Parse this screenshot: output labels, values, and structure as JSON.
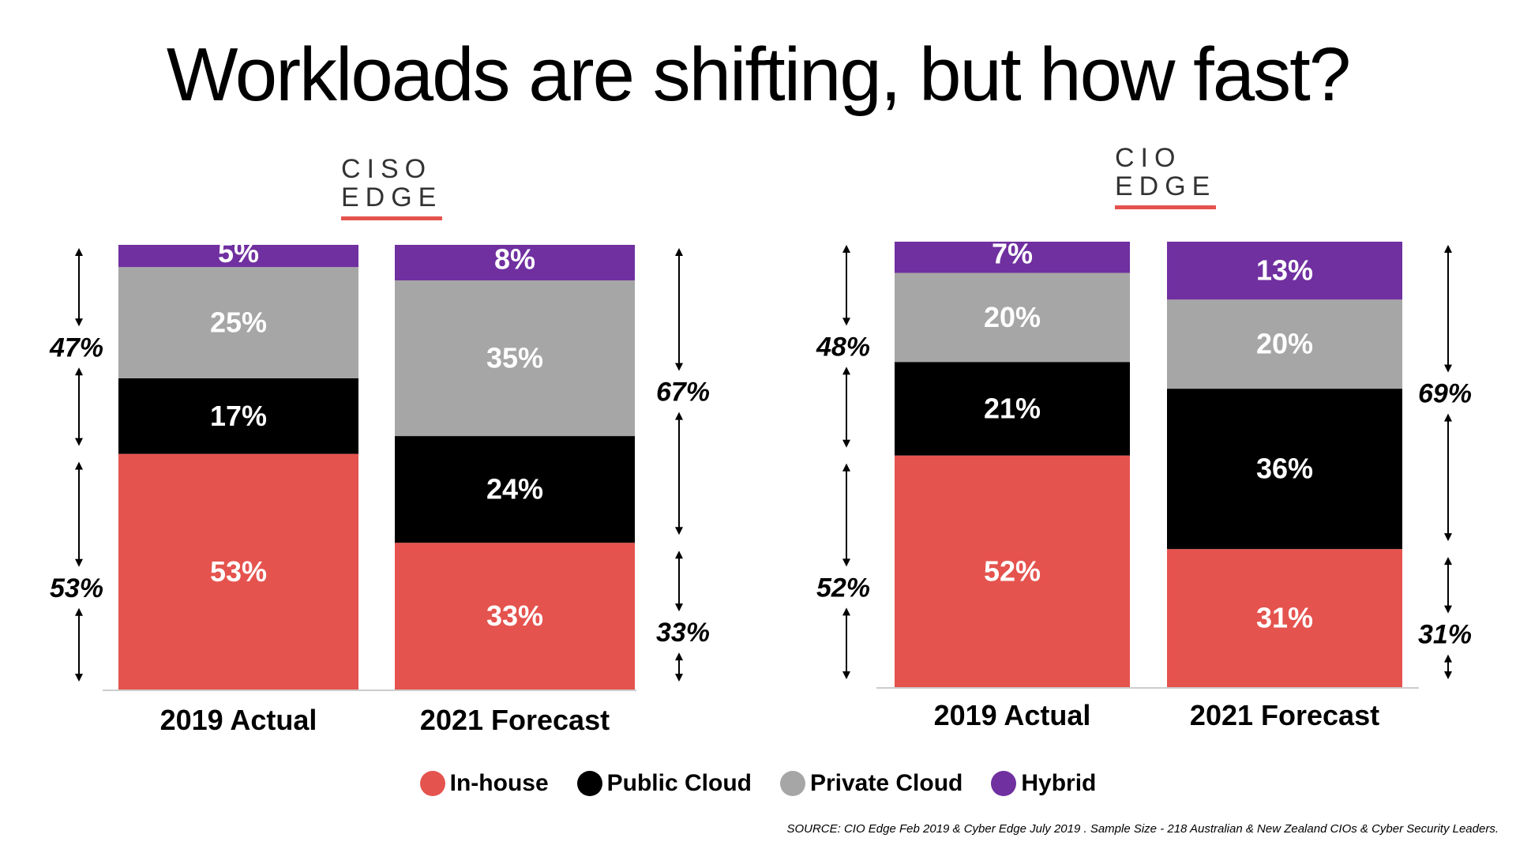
{
  "title": "Workloads are shifting, but how fast?",
  "logos": {
    "left": [
      "CISO",
      "EDGE"
    ],
    "right": [
      "CIO",
      "EDGE"
    ]
  },
  "legend": [
    {
      "label": "In-house",
      "color": "#e5534e"
    },
    {
      "label": "Public Cloud",
      "color": "#000000"
    },
    {
      "label": "Private Cloud",
      "color": "#a6a6a6"
    },
    {
      "label": "Hybrid",
      "color": "#7030a0"
    }
  ],
  "source": "SOURCE: CIO Edge Feb 2019 & Cyber Edge July 2019 . Sample Size - 218 Australian & New Zealand CIOs & Cyber Security Leaders.",
  "chart_data": [
    {
      "type": "bar",
      "stacked": true,
      "logo": "CISO EDGE",
      "categories": [
        "2019 Actual",
        "2021 Forecast"
      ],
      "series": [
        {
          "name": "In-house",
          "values": [
            53,
            33
          ],
          "labels": [
            "53%",
            "33%"
          ],
          "color": "#e5534e"
        },
        {
          "name": "Public Cloud",
          "values": [
            17,
            24
          ],
          "labels": [
            "17%",
            "24%"
          ],
          "color": "#000000"
        },
        {
          "name": "Private Cloud",
          "values": [
            25,
            35
          ],
          "labels": [
            "25%",
            "35%"
          ],
          "color": "#a6a6a6"
        },
        {
          "name": "Hybrid",
          "values": [
            5,
            8
          ],
          "labels": [
            "5%",
            "8%"
          ],
          "color": "#7030a0"
        }
      ],
      "group_annotations": [
        {
          "values": [
            47,
            67
          ],
          "labels": [
            "47%",
            "67%"
          ],
          "covers": [
            "Public Cloud",
            "Private Cloud",
            "Hybrid"
          ]
        },
        {
          "values": [
            53,
            33
          ],
          "labels": [
            "53%",
            "33%"
          ],
          "covers": [
            "In-house"
          ]
        }
      ],
      "ylim": [
        0,
        100
      ]
    },
    {
      "type": "bar",
      "stacked": true,
      "logo": "CIO EDGE",
      "categories": [
        "2019 Actual",
        "2021 Forecast"
      ],
      "series": [
        {
          "name": "In-house",
          "values": [
            52,
            31
          ],
          "labels": [
            "52%",
            "31%"
          ],
          "color": "#e5534e"
        },
        {
          "name": "Public Cloud",
          "values": [
            21,
            36
          ],
          "labels": [
            "21%",
            "36%"
          ],
          "color": "#000000"
        },
        {
          "name": "Private Cloud",
          "values": [
            20,
            20
          ],
          "labels": [
            "20%",
            "20%"
          ],
          "color": "#a6a6a6"
        },
        {
          "name": "Hybrid",
          "values": [
            7,
            13
          ],
          "labels": [
            "7%",
            "13%"
          ],
          "color": "#7030a0"
        }
      ],
      "group_annotations": [
        {
          "values": [
            48,
            69
          ],
          "labels": [
            "48%",
            "69%"
          ],
          "covers": [
            "Public Cloud",
            "Private Cloud",
            "Hybrid"
          ]
        },
        {
          "values": [
            52,
            31
          ],
          "labels": [
            "52%",
            "31%"
          ],
          "covers": [
            "In-house"
          ]
        }
      ],
      "ylim": [
        0,
        100
      ]
    }
  ]
}
